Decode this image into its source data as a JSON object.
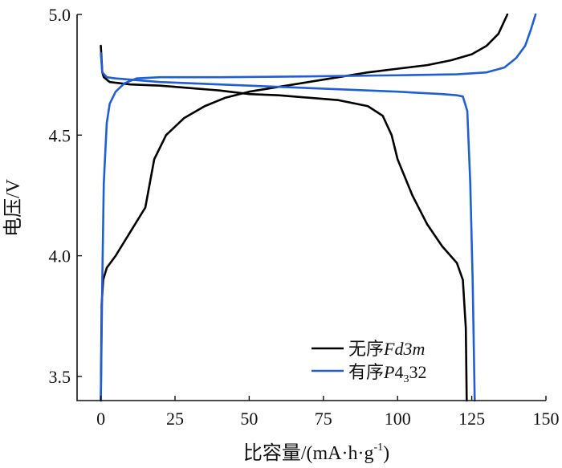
{
  "chart_data": {
    "type": "line",
    "xlabel": "比容量/(mA·h·g",
    "xlabel_sup": "-1",
    "xlabel_tail": ")",
    "ylabel": "电压/V",
    "xlim": [
      -8,
      150
    ],
    "ylim": [
      3.4,
      5.0
    ],
    "xticks": [
      {
        "value": 0,
        "label": "0"
      },
      {
        "value": 25,
        "label": "25"
      },
      {
        "value": 50,
        "label": "50"
      },
      {
        "value": 75,
        "label": "75"
      },
      {
        "value": 100,
        "label": "100"
      },
      {
        "value": 125,
        "label": "125"
      },
      {
        "value": 150,
        "label": "150"
      }
    ],
    "yticks": [
      {
        "value": 3.5,
        "label": "3.5"
      },
      {
        "value": 4.0,
        "label": "4.0"
      },
      {
        "value": 4.5,
        "label": "4.5"
      },
      {
        "value": 5.0,
        "label": "5.0"
      }
    ],
    "grid": false,
    "legend_position": "bottom-right",
    "series": [
      {
        "name": "无序Fd3m",
        "name_prefix": "无序",
        "name_italic": "Fd3m",
        "color": "#000000",
        "charge": {
          "x": [
            0,
            0.3,
            0.8,
            2,
            5,
            10,
            15,
            18,
            22,
            28,
            35,
            42,
            50,
            60,
            70,
            80,
            90,
            100,
            110,
            118,
            125,
            130,
            134,
            137
          ],
          "y": [
            3.4,
            3.8,
            3.9,
            3.95,
            4.0,
            4.1,
            4.2,
            4.4,
            4.5,
            4.57,
            4.62,
            4.655,
            4.68,
            4.7,
            4.72,
            4.74,
            4.76,
            4.775,
            4.79,
            4.81,
            4.835,
            4.87,
            4.92,
            5.0
          ]
        },
        "discharge": {
          "x": [
            0,
            0.5,
            1,
            3,
            10,
            20,
            30,
            40,
            50,
            60,
            70,
            80,
            90,
            95,
            98,
            100,
            105,
            110,
            115,
            120,
            122,
            123,
            123.3
          ],
          "y": [
            4.87,
            4.76,
            4.74,
            4.72,
            4.71,
            4.705,
            4.695,
            4.685,
            4.67,
            4.665,
            4.655,
            4.645,
            4.62,
            4.58,
            4.5,
            4.4,
            4.25,
            4.13,
            4.04,
            3.97,
            3.9,
            3.7,
            3.4
          ]
        }
      },
      {
        "name": "有序P4₃32",
        "name_prefix": "有序",
        "name_italic": "P",
        "name_rest": "4",
        "name_sub": "3",
        "name_tail": "32",
        "color": "#1f5fd6",
        "charge": {
          "x": [
            0,
            0.5,
            1,
            2,
            3,
            5,
            8,
            12,
            20,
            40,
            60,
            80,
            100,
            120,
            130,
            136,
            140,
            143,
            145,
            146.5
          ],
          "y": [
            3.4,
            3.9,
            4.3,
            4.55,
            4.63,
            4.68,
            4.715,
            4.735,
            4.74,
            4.74,
            4.742,
            4.745,
            4.748,
            4.752,
            4.76,
            4.78,
            4.82,
            4.87,
            4.94,
            5.0
          ]
        },
        "discharge": {
          "x": [
            0,
            0.5,
            2,
            5,
            20,
            40,
            60,
            80,
            100,
            115,
            120,
            122,
            123.5,
            124.5,
            125.3,
            126
          ],
          "y": [
            4.84,
            4.76,
            4.74,
            4.735,
            4.72,
            4.71,
            4.7,
            4.69,
            4.68,
            4.67,
            4.665,
            4.66,
            4.6,
            4.3,
            3.9,
            3.4
          ]
        }
      }
    ]
  }
}
